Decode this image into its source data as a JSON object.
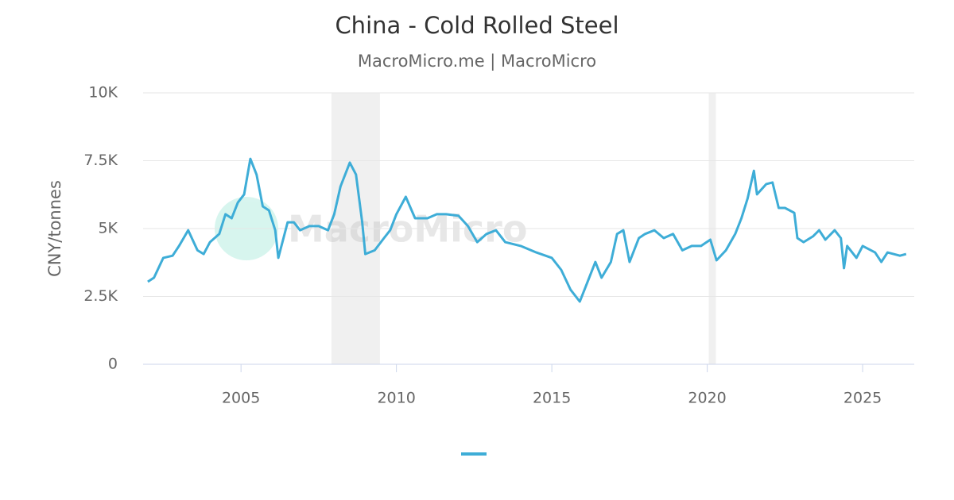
{
  "chart_data": {
    "type": "line",
    "title": "China - Cold Rolled Steel",
    "subtitle": "MacroMicro.me | MacroMicro",
    "y_label": "CNY/tonnes",
    "watermark": "MacroMicro",
    "xlim": [
      2001.85,
      2026.66
    ],
    "xticks": [
      2005,
      2010,
      2015,
      2020,
      2025
    ],
    "ylim": [
      0,
      10000
    ],
    "yticks": [
      0,
      {
        "value": 2500,
        "label": "2.5K"
      },
      {
        "value": 5000,
        "label": "5K"
      },
      {
        "value": 7500,
        "label": "7.5K"
      },
      {
        "value": 10000,
        "label": "10K"
      }
    ],
    "grid": true,
    "shaded_ranges": [
      [
        2007.91,
        2009.47
      ],
      [
        2020.05,
        2020.28
      ]
    ],
    "series": [
      {
        "color": "#3eadd7",
        "x": [
          2002.0,
          2002.2,
          2002.5,
          2002.8,
          2003.0,
          2003.3,
          2003.6,
          2003.8,
          2004.0,
          2004.3,
          2004.5,
          2004.7,
          2004.9,
          2005.1,
          2005.3,
          2005.5,
          2005.7,
          2005.9,
          2006.1,
          2006.2,
          2006.5,
          2006.7,
          2006.9,
          2007.2,
          2007.5,
          2007.8,
          2008.0,
          2008.2,
          2008.5,
          2008.7,
          2008.9,
          2009.0,
          2009.3,
          2009.6,
          2009.8,
          2010.0,
          2010.3,
          2010.6,
          2011.0,
          2011.3,
          2011.6,
          2012.0,
          2012.3,
          2012.6,
          2012.9,
          2013.2,
          2013.5,
          2014.0,
          2014.5,
          2015.0,
          2015.3,
          2015.6,
          2015.9,
          2016.1,
          2016.4,
          2016.6,
          2016.9,
          2017.1,
          2017.3,
          2017.5,
          2017.8,
          2018.0,
          2018.3,
          2018.6,
          2018.9,
          2019.2,
          2019.5,
          2019.8,
          2020.1,
          2020.3,
          2020.6,
          2020.9,
          2021.1,
          2021.3,
          2021.5,
          2021.6,
          2021.9,
          2022.1,
          2022.3,
          2022.5,
          2022.8,
          2022.9,
          2023.1,
          2023.4,
          2023.6,
          2023.8,
          2024.1,
          2024.3,
          2024.4,
          2024.5,
          2024.8,
          2025.0,
          2025.4,
          2025.6,
          2025.8,
          2026.2,
          2026.4
        ],
        "values": [
          3040,
          3190,
          3920,
          4000,
          4350,
          4940,
          4200,
          4060,
          4500,
          4800,
          5530,
          5380,
          5960,
          6260,
          7570,
          6990,
          5820,
          5670,
          4940,
          3920,
          5230,
          5230,
          4940,
          5090,
          5090,
          4940,
          5530,
          6550,
          7430,
          6990,
          5230,
          4060,
          4200,
          4650,
          4940,
          5530,
          6170,
          5380,
          5380,
          5530,
          5530,
          5470,
          5090,
          4500,
          4800,
          4940,
          4500,
          4360,
          4120,
          3920,
          3480,
          2750,
          2310,
          2890,
          3770,
          3190,
          3770,
          4800,
          4940,
          3770,
          4650,
          4800,
          4940,
          4650,
          4800,
          4200,
          4360,
          4360,
          4590,
          3830,
          4200,
          4800,
          5380,
          6110,
          7130,
          6260,
          6640,
          6700,
          5760,
          5760,
          5580,
          4650,
          4500,
          4710,
          4940,
          4590,
          4940,
          4650,
          3540,
          4360,
          3920,
          4360,
          4120,
          3770,
          4120,
          4000,
          4060
        ]
      }
    ]
  }
}
